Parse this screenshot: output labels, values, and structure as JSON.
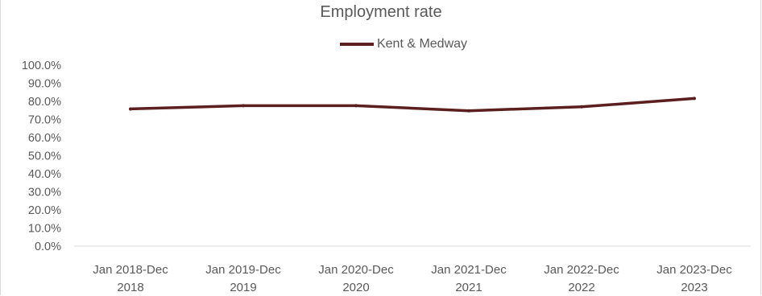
{
  "chart_data": {
    "type": "line",
    "title": "Employment rate",
    "categories": [
      [
        "Jan 2018-Dec",
        "2018"
      ],
      [
        "Jan 2019-Dec",
        "2019"
      ],
      [
        "Jan 2020-Dec",
        "2020"
      ],
      [
        "Jan 2021-Dec",
        "2021"
      ],
      [
        "Jan 2022-Dec",
        "2022"
      ],
      [
        "Jan 2023-Dec",
        "2023"
      ]
    ],
    "series": [
      {
        "name": "Kent & Medway",
        "color": "#5c1f1f",
        "values": [
          75.8,
          77.6,
          77.6,
          74.8,
          77.0,
          81.6
        ]
      }
    ],
    "y_ticks": [
      "100.0%",
      "90.0%",
      "80.0%",
      "70.0%",
      "60.0%",
      "50.0%",
      "40.0%",
      "30.0%",
      "20.0%",
      "10.0%",
      "0.0%"
    ],
    "ylim": [
      0,
      100
    ],
    "grid": false,
    "legend_position": "top"
  }
}
